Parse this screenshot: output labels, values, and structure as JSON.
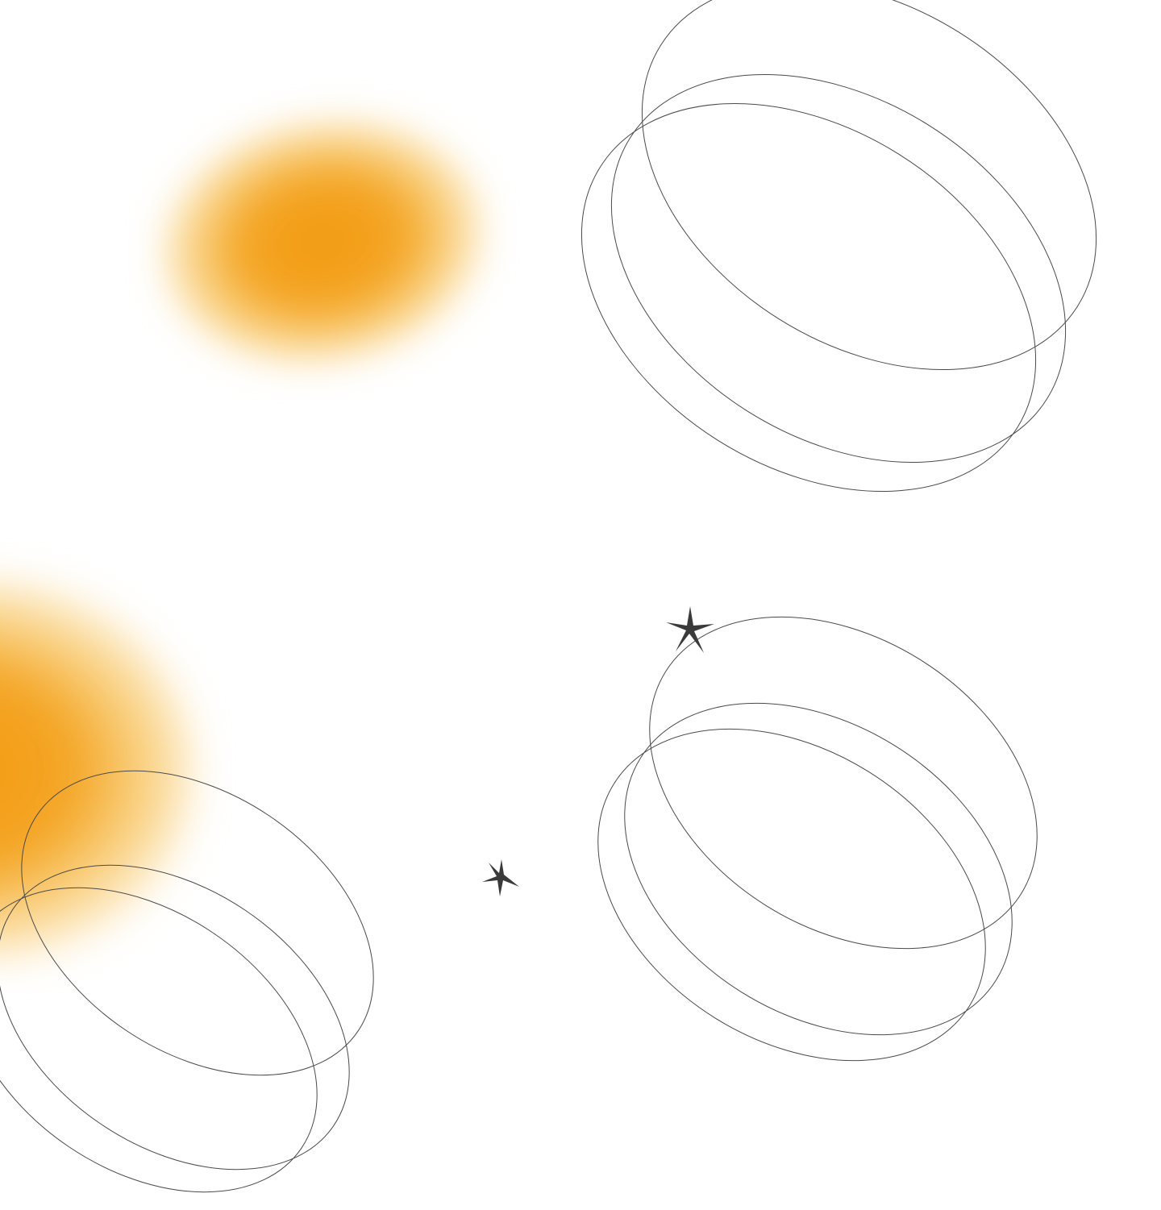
{
  "colors": {
    "background": "#ffffff",
    "blob_core": "#f39a12",
    "blob_mid": "#f4a524",
    "ring_stroke": "#4a4a4a",
    "star_fill": "#3a3a3a"
  },
  "decorations": {
    "blobs": [
      "orange-blur-blob",
      "orange-blur-blob"
    ],
    "ring_groups": [
      "triple-ellipse-ring",
      "triple-ellipse-ring",
      "triple-ellipse-ring"
    ],
    "stars": [
      "four-point-sparkle",
      "four-point-sparkle"
    ]
  }
}
